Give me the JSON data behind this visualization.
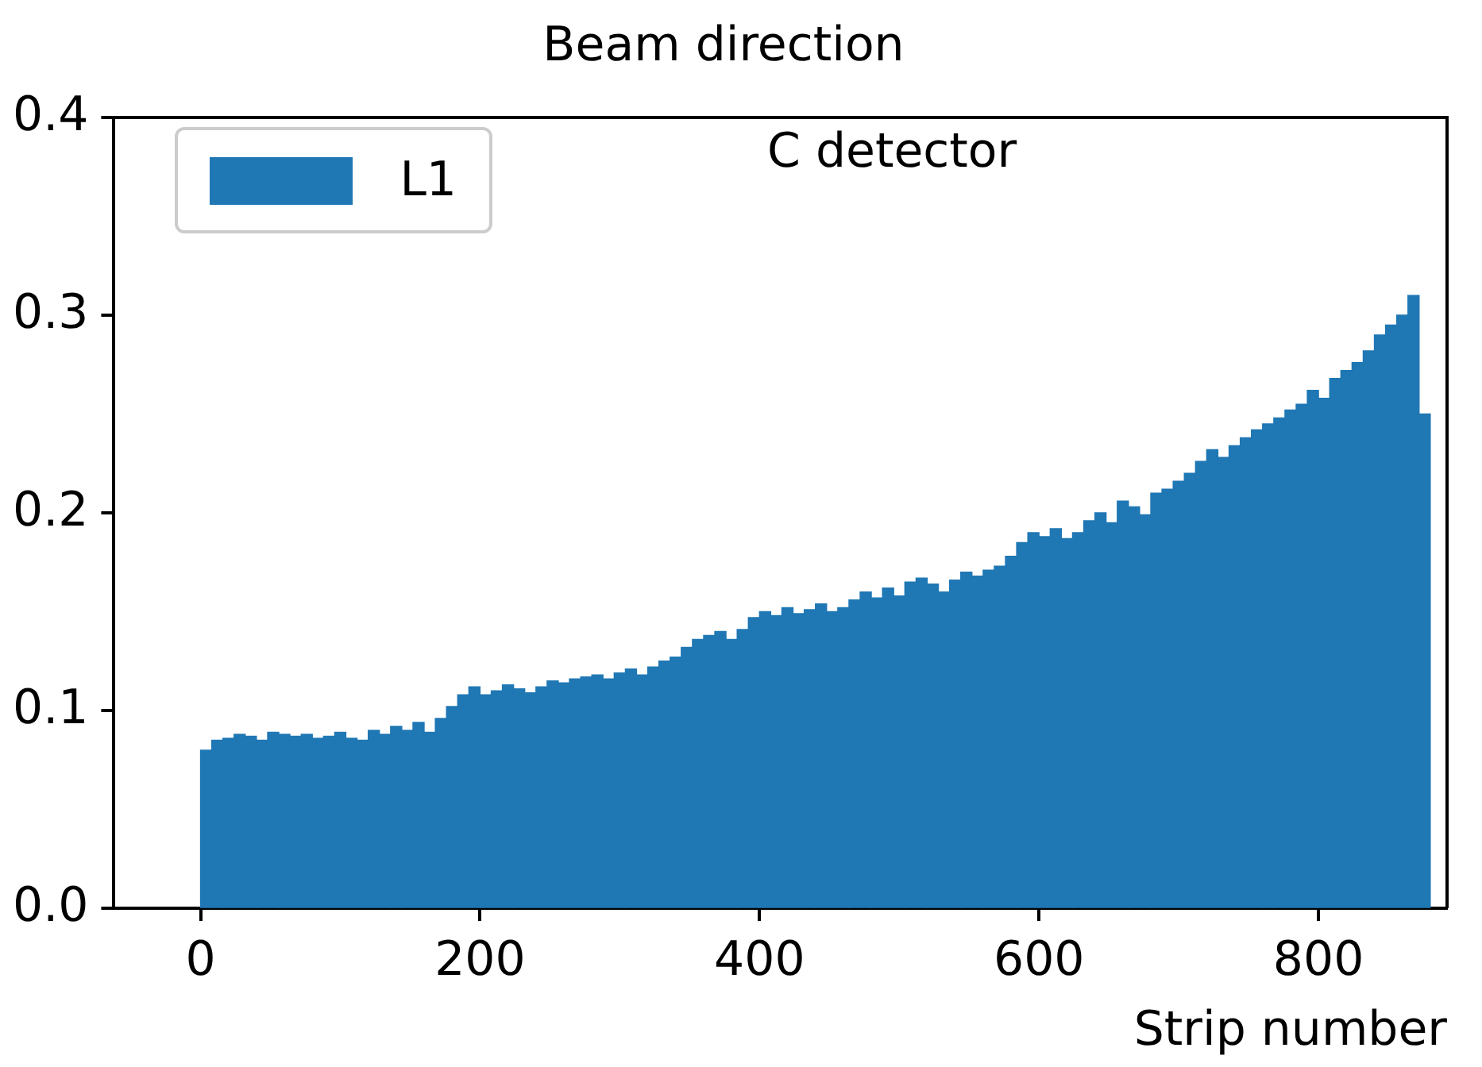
{
  "chart_data": {
    "type": "histogram",
    "title": "Beam direction",
    "xlabel": "Strip number",
    "annotations": [
      "C detector"
    ],
    "bins": [
      0,
      8,
      16,
      24,
      32,
      40,
      48,
      56,
      64,
      72,
      80,
      88,
      96,
      104,
      112,
      120,
      128,
      136,
      144,
      152,
      160,
      168,
      176,
      184,
      192,
      200,
      208,
      216,
      224,
      232,
      240,
      248,
      256,
      264,
      272,
      280,
      288,
      296,
      304,
      312,
      320,
      328,
      336,
      344,
      352,
      360,
      368,
      376,
      384,
      392,
      400,
      408,
      416,
      424,
      432,
      440,
      448,
      456,
      464,
      472,
      480,
      488,
      496,
      504,
      512,
      520,
      528,
      536,
      544,
      552,
      560,
      568,
      576,
      584,
      592,
      600,
      608,
      616,
      624,
      632,
      640,
      648,
      656,
      664,
      672,
      680,
      688,
      696,
      704,
      712,
      720,
      728,
      736,
      744,
      752,
      760,
      768,
      776,
      784,
      792,
      800,
      808,
      816,
      824,
      832,
      840,
      848,
      856,
      864,
      872,
      880
    ],
    "series": [
      {
        "name": "L1",
        "color": "#1f77b4",
        "values": [
          0.08,
          0.085,
          0.086,
          0.088,
          0.087,
          0.085,
          0.089,
          0.088,
          0.087,
          0.088,
          0.086,
          0.087,
          0.089,
          0.086,
          0.085,
          0.09,
          0.088,
          0.092,
          0.09,
          0.094,
          0.089,
          0.096,
          0.102,
          0.108,
          0.112,
          0.108,
          0.11,
          0.113,
          0.111,
          0.109,
          0.112,
          0.115,
          0.114,
          0.116,
          0.117,
          0.118,
          0.116,
          0.119,
          0.121,
          0.118,
          0.122,
          0.125,
          0.127,
          0.132,
          0.136,
          0.138,
          0.14,
          0.136,
          0.141,
          0.147,
          0.15,
          0.148,
          0.152,
          0.149,
          0.151,
          0.154,
          0.15,
          0.152,
          0.156,
          0.16,
          0.157,
          0.162,
          0.158,
          0.165,
          0.167,
          0.164,
          0.16,
          0.166,
          0.17,
          0.168,
          0.171,
          0.173,
          0.178,
          0.185,
          0.19,
          0.188,
          0.192,
          0.187,
          0.19,
          0.196,
          0.2,
          0.195,
          0.206,
          0.203,
          0.199,
          0.21,
          0.212,
          0.216,
          0.22,
          0.226,
          0.232,
          0.228,
          0.234,
          0.238,
          0.242,
          0.245,
          0.248,
          0.252,
          0.255,
          0.262,
          0.258,
          0.268,
          0.272,
          0.276,
          0.282,
          0.29,
          0.295,
          0.3,
          0.31,
          0.25
        ]
      }
    ],
    "xlim": [
      -62,
      892
    ],
    "xticks": [
      0,
      200,
      400,
      600,
      800
    ],
    "ylim": [
      0,
      0.4
    ],
    "yticks": [
      {
        "value": 0,
        "label": "0.0"
      },
      {
        "value": 0.1,
        "label": "0.1"
      },
      {
        "value": 0.2,
        "label": "0.2"
      },
      {
        "value": 0.3,
        "label": "0.3"
      },
      {
        "value": 0.4,
        "label": "0.4"
      }
    ],
    "grid": false,
    "legend": "top left"
  }
}
